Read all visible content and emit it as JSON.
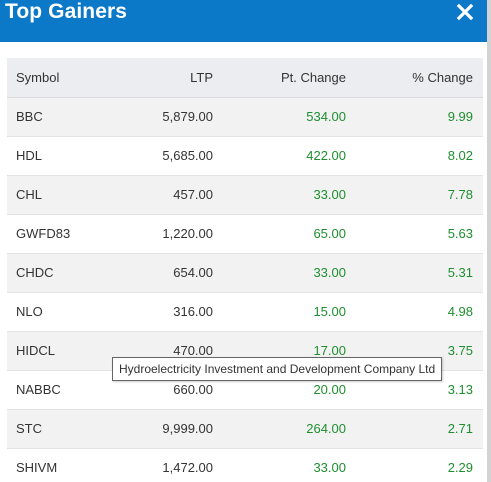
{
  "modal": {
    "title": "Top Gainers",
    "close_icon": "close-icon"
  },
  "table": {
    "headers": {
      "symbol": "Symbol",
      "ltp": "LTP",
      "pt_change": "Pt. Change",
      "pct_change": "% Change"
    },
    "rows": [
      {
        "symbol": "BBC",
        "ltp": "5,879.00",
        "pt_change": "534.00",
        "pct_change": "9.99"
      },
      {
        "symbol": "HDL",
        "ltp": "5,685.00",
        "pt_change": "422.00",
        "pct_change": "8.02"
      },
      {
        "symbol": "CHL",
        "ltp": "457.00",
        "pt_change": "33.00",
        "pct_change": "7.78"
      },
      {
        "symbol": "GWFD83",
        "ltp": "1,220.00",
        "pt_change": "65.00",
        "pct_change": "5.63"
      },
      {
        "symbol": "CHDC",
        "ltp": "654.00",
        "pt_change": "33.00",
        "pct_change": "5.31"
      },
      {
        "symbol": "NLO",
        "ltp": "316.00",
        "pt_change": "15.00",
        "pct_change": "4.98"
      },
      {
        "symbol": "HIDCL",
        "ltp": "470.00",
        "pt_change": "17.00",
        "pct_change": "3.75"
      },
      {
        "symbol": "NABBC",
        "ltp": "660.00",
        "pt_change": "20.00",
        "pct_change": "3.13"
      },
      {
        "symbol": "STC",
        "ltp": "9,999.00",
        "pt_change": "264.00",
        "pct_change": "2.71"
      },
      {
        "symbol": "SHIVM",
        "ltp": "1,472.00",
        "pt_change": "33.00",
        "pct_change": "2.29"
      }
    ]
  },
  "tooltip": {
    "text": "Hydroelectricity Investment and Development Company Ltd"
  },
  "colors": {
    "header_bg": "#0b78c8",
    "gain": "#1e8f2f",
    "table_header_bg": "#ebedf0",
    "row_alt_bg": "#f2f2f2"
  }
}
